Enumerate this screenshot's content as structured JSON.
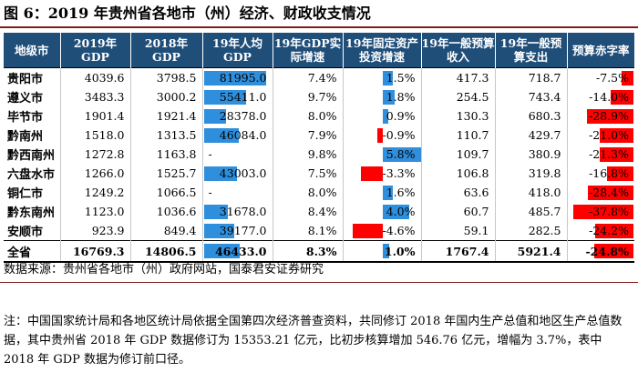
{
  "title": "图 6：2019 年贵州省各地市（州）经济、财政收支情况",
  "columns": [
    "地级市",
    "2019年GDP",
    "2018年GDP",
    "19年人均GDP",
    "19年GDP实际增速",
    "19年固定资产投资增速",
    "19年一般预算收入",
    "19年一般预算支出",
    "预算赤字率"
  ],
  "rows": [
    {
      "city": "贵阳市",
      "gdp2019": "4039.6",
      "gdp2018": "3798.5",
      "per_capita": "81995.0",
      "per_capita_num": 81995,
      "growth": "7.4%",
      "fai": "1.5%",
      "fai_num": 1.5,
      "revenue": "417.3",
      "expenditure": "718.7",
      "deficit": "-7.5%",
      "deficit_num": -7.5
    },
    {
      "city": "遵义市",
      "gdp2019": "3483.3",
      "gdp2018": "3000.2",
      "per_capita": "55411.0",
      "per_capita_num": 55411,
      "growth": "9.7%",
      "fai": "1.8%",
      "fai_num": 1.8,
      "revenue": "254.5",
      "expenditure": "743.4",
      "deficit": "-14.0%",
      "deficit_num": -14.0
    },
    {
      "city": "毕节市",
      "gdp2019": "1901.4",
      "gdp2018": "1921.4",
      "per_capita": "28378.0",
      "per_capita_num": 28378,
      "growth": "8.0%",
      "fai": "0.9%",
      "fai_num": 0.9,
      "revenue": "130.3",
      "expenditure": "680.3",
      "deficit": "-28.9%",
      "deficit_num": -28.9
    },
    {
      "city": "黔南州",
      "gdp2019": "1518.0",
      "gdp2018": "1313.5",
      "per_capita": "46084.0",
      "per_capita_num": 46084,
      "growth": "7.9%",
      "fai": "-0.9%",
      "fai_num": -0.9,
      "revenue": "110.7",
      "expenditure": "429.7",
      "deficit": "-21.0%",
      "deficit_num": -21.0
    },
    {
      "city": "黔西南州",
      "gdp2019": "1272.8",
      "gdp2018": "1163.8",
      "per_capita": "-",
      "per_capita_num": 0,
      "growth": "9.8%",
      "fai": "5.8%",
      "fai_num": 5.8,
      "revenue": "109.7",
      "expenditure": "380.9",
      "deficit": "-21.3%",
      "deficit_num": -21.3
    },
    {
      "city": "六盘水市",
      "gdp2019": "1266.0",
      "gdp2018": "1525.7",
      "per_capita": "43003.0",
      "per_capita_num": 43003,
      "growth": "7.5%",
      "fai": "-3.3%",
      "fai_num": -3.3,
      "revenue": "106.8",
      "expenditure": "319.8",
      "deficit": "-16.8%",
      "deficit_num": -16.8
    },
    {
      "city": "铜仁市",
      "gdp2019": "1249.2",
      "gdp2018": "1066.5",
      "per_capita": "-",
      "per_capita_num": 0,
      "growth": "8.0%",
      "fai": "1.6%",
      "fai_num": 1.6,
      "revenue": "63.6",
      "expenditure": "418.0",
      "deficit": "-28.4%",
      "deficit_num": -28.4
    },
    {
      "city": "黔东南州",
      "gdp2019": "1123.0",
      "gdp2018": "1036.6",
      "per_capita": "31678.0",
      "per_capita_num": 31678,
      "growth": "8.4%",
      "fai": "4.0%",
      "fai_num": 4.0,
      "revenue": "60.7",
      "expenditure": "485.7",
      "deficit": "-37.8%",
      "deficit_num": -37.8
    },
    {
      "city": "安顺市",
      "gdp2019": "923.9",
      "gdp2018": "849.4",
      "per_capita": "39177.0",
      "per_capita_num": 39177,
      "growth": "8.1%",
      "fai": "-4.6%",
      "fai_num": -4.6,
      "revenue": "59.1",
      "expenditure": "282.5",
      "deficit": "-24.2%",
      "deficit_num": -24.2
    }
  ],
  "total": {
    "city": "全省",
    "gdp2019": "16769.3",
    "gdp2018": "14806.5",
    "per_capita": "46433.0",
    "per_capita_num": 46433,
    "growth": "8.3%",
    "fai": "1.0%",
    "fai_num": 1.0,
    "revenue": "1767.4",
    "expenditure": "5921.4",
    "deficit": "-24.8%",
    "deficit_num": -24.8
  },
  "source": "数据来源：贵州省各地市（州）政府网站，国泰君安证券研究",
  "note": "注：中国国家统计局和各地区统计局依据全国第四次经济普查资料，共同修订 2018 年国内生产总值和地区生产总值数据，其中贵州省 2018 年 GDP 数据修订为 15353.21 亿元，比初步核算增加 546.76 亿元，增幅为 3.7%，表中 2018 年 GDP 数据为修订前口径。",
  "colors": {
    "header_bg": "#1f4e79",
    "bar_blue": "#2f8fdc",
    "bar_red": "#ff0000",
    "rule": "#7f1d1d"
  }
}
